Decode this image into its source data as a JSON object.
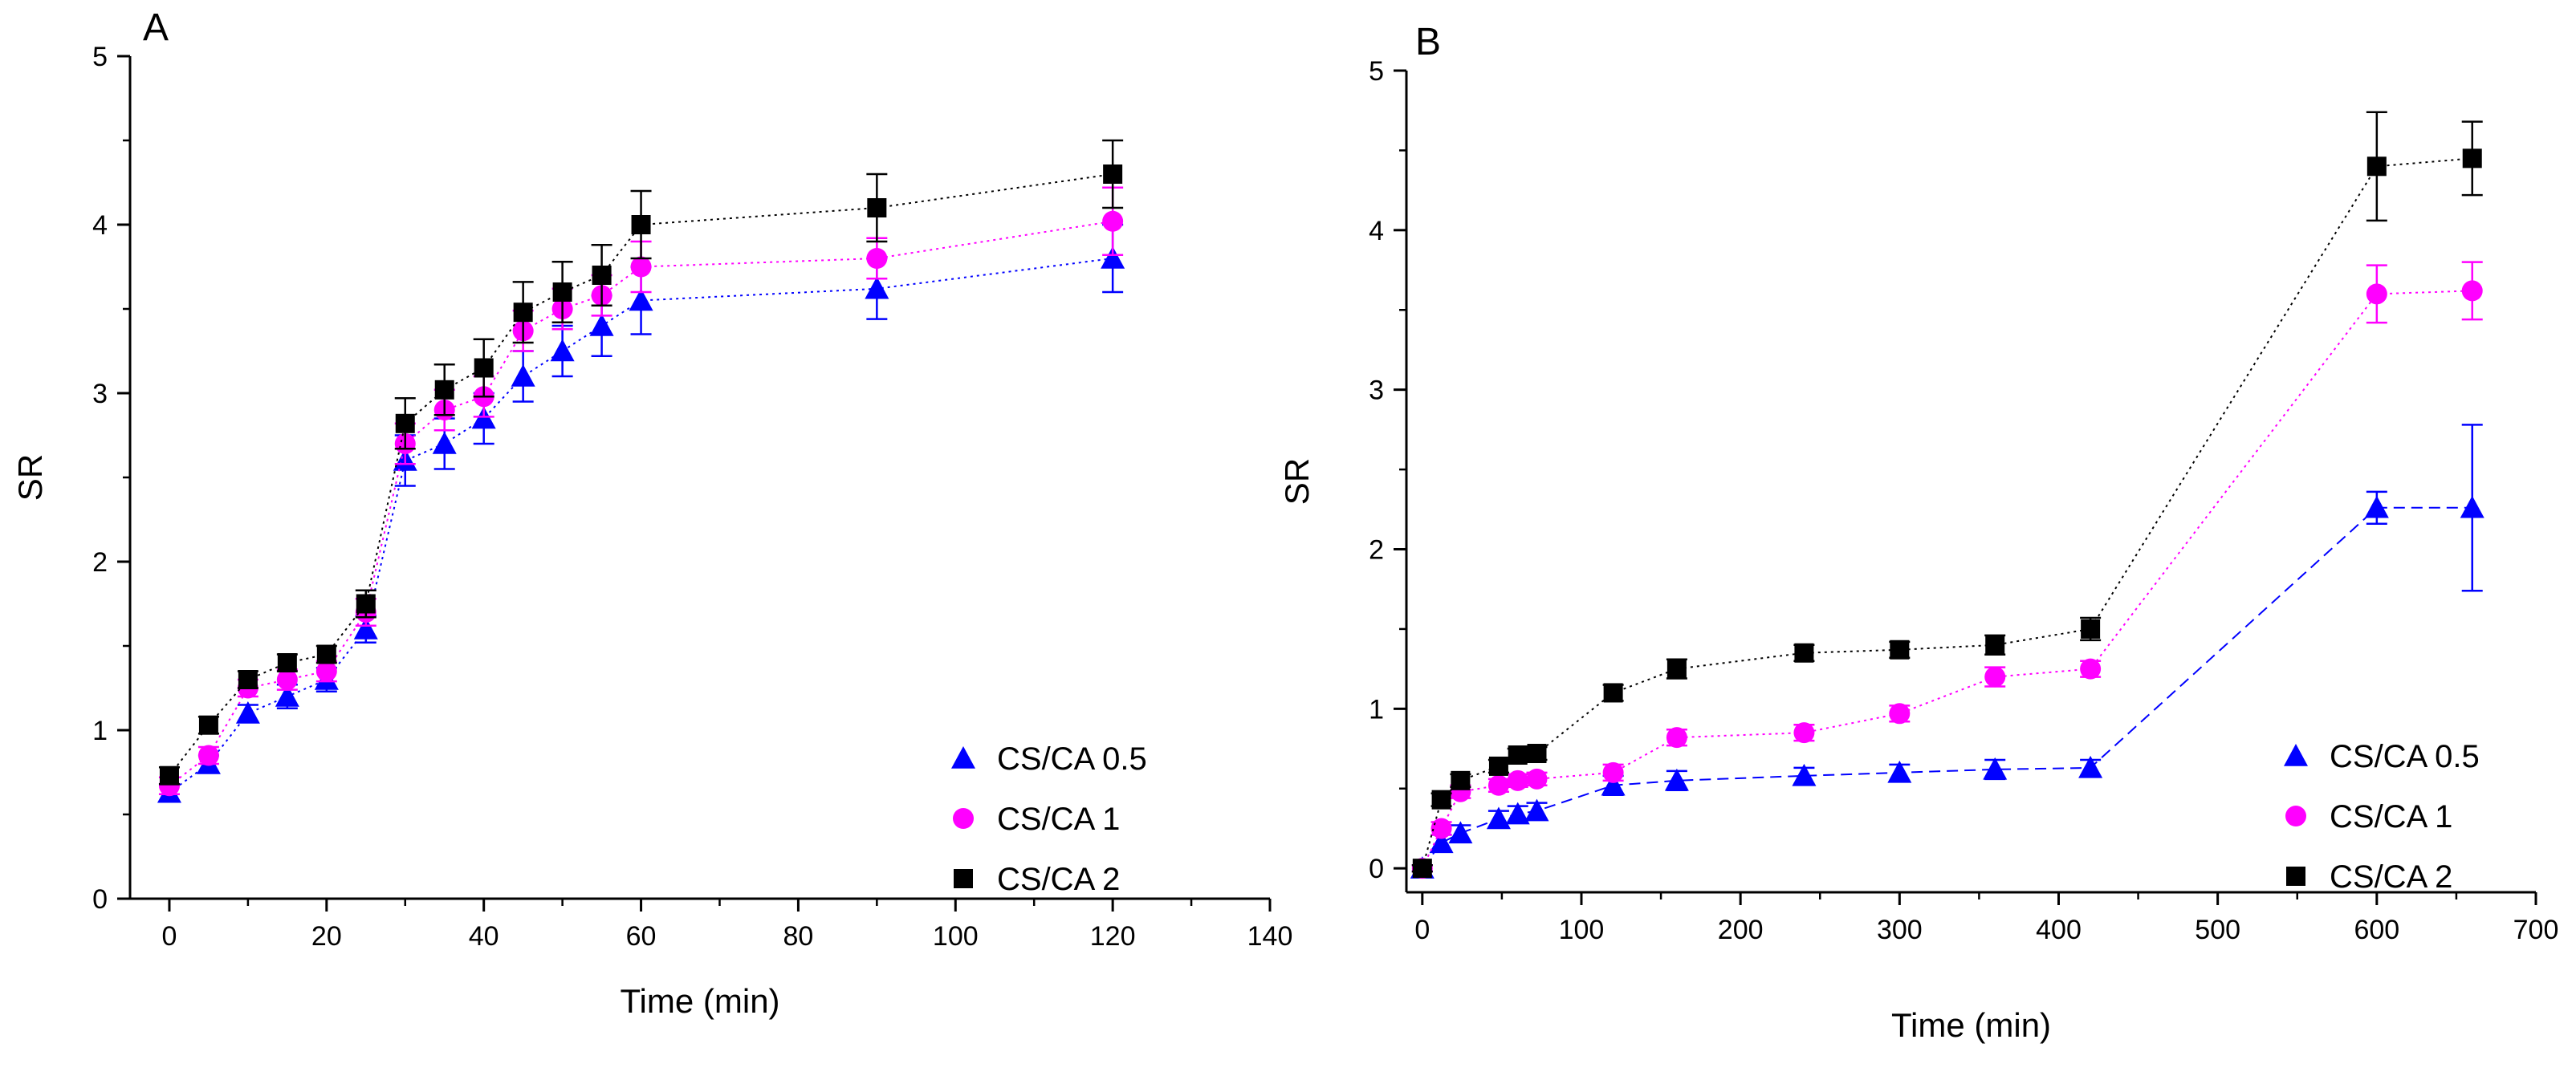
{
  "chart_data": [
    {
      "type": "scatter",
      "panel_label": "A",
      "xlabel": "Time (min)",
      "ylabel": "SR",
      "xlim": [
        -5,
        140
      ],
      "ylim": [
        0,
        5
      ],
      "xticks": [
        "0",
        "20",
        "40",
        "60",
        "80",
        "100",
        "120",
        "140"
      ],
      "yticks": [
        "0",
        "1",
        "2",
        "3",
        "4",
        "5"
      ],
      "legend_position": "bottom-right",
      "series": [
        {
          "name": "CS/CA 0.5",
          "marker": "triangle",
          "color": "#0000ff",
          "line_style": "dotted",
          "x": [
            0,
            5,
            10,
            15,
            20,
            25,
            30,
            35,
            40,
            45,
            50,
            55,
            60,
            90,
            120
          ],
          "values": [
            0.63,
            0.8,
            1.1,
            1.2,
            1.3,
            1.6,
            2.6,
            2.7,
            2.85,
            3.1,
            3.25,
            3.4,
            3.55,
            3.62,
            3.8
          ],
          "errors": [
            0.05,
            0.05,
            0.05,
            0.07,
            0.07,
            0.08,
            0.15,
            0.15,
            0.15,
            0.15,
            0.15,
            0.18,
            0.2,
            0.18,
            0.2
          ]
        },
        {
          "name": "CS/CA 1",
          "marker": "circle",
          "color": "#ff00ff",
          "line_style": "dotted",
          "x": [
            0,
            5,
            10,
            15,
            20,
            25,
            30,
            35,
            40,
            45,
            50,
            55,
            60,
            90,
            120
          ],
          "values": [
            0.67,
            0.85,
            1.25,
            1.3,
            1.35,
            1.7,
            2.7,
            2.9,
            2.98,
            3.37,
            3.5,
            3.58,
            3.75,
            3.8,
            4.02
          ],
          "errors": [
            0.05,
            0.05,
            0.05,
            0.06,
            0.06,
            0.08,
            0.12,
            0.12,
            0.12,
            0.12,
            0.12,
            0.12,
            0.15,
            0.12,
            0.2
          ]
        },
        {
          "name": "CS/CA 2",
          "marker": "square",
          "color": "#000000",
          "line_style": "dotted",
          "x": [
            0,
            5,
            10,
            15,
            20,
            25,
            30,
            35,
            40,
            45,
            50,
            55,
            60,
            90,
            120
          ],
          "values": [
            0.73,
            1.03,
            1.3,
            1.4,
            1.45,
            1.75,
            2.82,
            3.02,
            3.15,
            3.48,
            3.6,
            3.7,
            4.0,
            4.1,
            4.3
          ],
          "errors": [
            0.05,
            0.05,
            0.05,
            0.05,
            0.05,
            0.08,
            0.15,
            0.15,
            0.17,
            0.18,
            0.18,
            0.18,
            0.2,
            0.2,
            0.2
          ]
        }
      ]
    },
    {
      "type": "scatter",
      "panel_label": "B",
      "xlabel": "Time (min)",
      "ylabel": "SR",
      "xlim": [
        -10,
        700
      ],
      "ylim": [
        -0.15,
        5
      ],
      "xticks": [
        "0",
        "100",
        "200",
        "300",
        "400",
        "500",
        "600",
        "700"
      ],
      "yticks": [
        "0",
        "1",
        "2",
        "3",
        "4",
        "5"
      ],
      "legend_position": "bottom-right",
      "series": [
        {
          "name": "CS/CA 0.5",
          "marker": "triangle",
          "color": "#0000ff",
          "line_style": "dashed",
          "x": [
            0,
            12,
            24,
            48,
            60,
            72,
            120,
            160,
            240,
            300,
            360,
            420,
            600,
            660
          ],
          "values": [
            0.0,
            0.16,
            0.22,
            0.31,
            0.34,
            0.36,
            0.52,
            0.55,
            0.58,
            0.6,
            0.62,
            0.63,
            2.26,
            2.26
          ],
          "errors": [
            0.02,
            0.05,
            0.05,
            0.05,
            0.05,
            0.05,
            0.06,
            0.06,
            0.05,
            0.05,
            0.06,
            0.05,
            0.1,
            0.52
          ]
        },
        {
          "name": "CS/CA 1",
          "marker": "circle",
          "color": "#ff00ff",
          "line_style": "dotted",
          "x": [
            0,
            12,
            24,
            48,
            60,
            72,
            120,
            160,
            240,
            300,
            360,
            420,
            600,
            660
          ],
          "values": [
            0.0,
            0.25,
            0.48,
            0.52,
            0.55,
            0.56,
            0.6,
            0.82,
            0.85,
            0.97,
            1.2,
            1.25,
            3.6,
            3.62
          ],
          "errors": [
            0.02,
            0.04,
            0.04,
            0.04,
            0.04,
            0.04,
            0.05,
            0.05,
            0.05,
            0.05,
            0.06,
            0.05,
            0.18,
            0.18
          ]
        },
        {
          "name": "CS/CA 2",
          "marker": "square",
          "color": "#000000",
          "line_style": "dotted",
          "x": [
            0,
            12,
            24,
            48,
            60,
            72,
            120,
            160,
            240,
            300,
            360,
            420,
            600,
            660
          ],
          "values": [
            0.0,
            0.43,
            0.55,
            0.64,
            0.71,
            0.72,
            1.1,
            1.25,
            1.35,
            1.37,
            1.4,
            1.5,
            4.4,
            4.45
          ],
          "errors": [
            0.02,
            0.04,
            0.04,
            0.04,
            0.04,
            0.04,
            0.05,
            0.06,
            0.05,
            0.05,
            0.06,
            0.07,
            0.34,
            0.23
          ]
        }
      ]
    }
  ]
}
